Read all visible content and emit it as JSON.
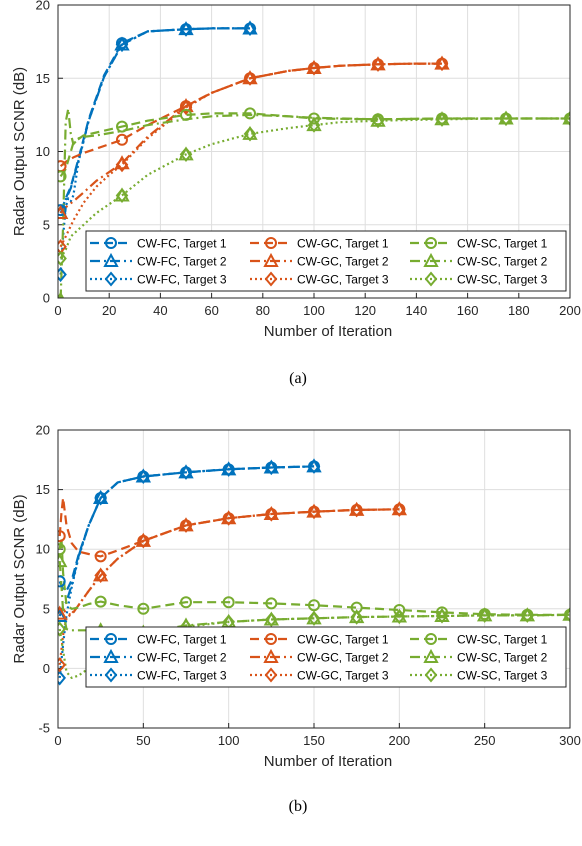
{
  "colors": {
    "fc": "#0072BD",
    "gc": "#D95319",
    "sc": "#77AC30"
  },
  "chart_data": [
    {
      "type": "line",
      "caption": "(a)",
      "xlabel": "Number of Iteration",
      "ylabel": "Radar Output SCNR (dB)",
      "xlim": [
        0,
        200
      ],
      "ylim": [
        0,
        20
      ],
      "xticks": [
        "0",
        "20",
        "40",
        "60",
        "80",
        "100",
        "120",
        "140",
        "160",
        "180",
        "200"
      ],
      "yticks": [
        "0",
        "5",
        "10",
        "15",
        "20"
      ],
      "grid": true,
      "legend_position": "bottom",
      "series": [
        {
          "name": "CW-FC, Target 1",
          "color": "fc",
          "dash": "dash",
          "marker": "circle",
          "x": [
            1,
            2,
            3,
            5,
            8,
            12,
            18,
            25,
            35,
            50,
            60,
            75
          ],
          "y": [
            6.0,
            6.3,
            6.8,
            7.6,
            9.5,
            12.2,
            15.2,
            17.4,
            18.2,
            18.35,
            18.4,
            18.4
          ],
          "mx": [
            1,
            25,
            50,
            75
          ]
        },
        {
          "name": "CW-FC, Target 2",
          "color": "fc",
          "dash": "dashdot",
          "marker": "triangle",
          "x": [
            1,
            2,
            3,
            5,
            8,
            12,
            18,
            25,
            35,
            50,
            60,
            75
          ],
          "y": [
            5.8,
            6.2,
            6.7,
            7.5,
            9.4,
            12.1,
            15.1,
            17.3,
            18.2,
            18.35,
            18.4,
            18.4
          ],
          "mx": [
            1,
            25,
            50,
            75
          ]
        },
        {
          "name": "CW-FC, Target 3",
          "color": "fc",
          "dash": "dot",
          "marker": "diamond",
          "x": [
            1,
            2,
            3,
            4,
            5,
            6,
            8,
            12,
            18,
            25,
            35,
            50,
            60,
            75
          ],
          "y": [
            1.6,
            4.2,
            6.2,
            6.8,
            6.6,
            7.0,
            9.3,
            12.1,
            15.1,
            17.3,
            18.2,
            18.35,
            18.4,
            18.4
          ],
          "mx": [
            1,
            25,
            50,
            75
          ]
        },
        {
          "name": "CW-GC, Target 1",
          "color": "gc",
          "dash": "dash",
          "marker": "circle",
          "x": [
            1,
            3,
            6,
            10,
            15,
            20,
            25,
            35,
            50,
            60,
            75,
            90,
            100,
            110,
            125,
            140,
            150
          ],
          "y": [
            9.0,
            9.3,
            9.6,
            9.9,
            10.2,
            10.5,
            10.8,
            11.8,
            13.1,
            14.0,
            15.0,
            15.5,
            15.7,
            15.85,
            15.95,
            16.0,
            16.0
          ],
          "mx": [
            1,
            25,
            50,
            75,
            100,
            125,
            150
          ]
        },
        {
          "name": "CW-GC, Target 2",
          "color": "gc",
          "dash": "dashdot",
          "marker": "triangle",
          "x": [
            1,
            3,
            6,
            10,
            15,
            20,
            25,
            35,
            50,
            60,
            75,
            90,
            100,
            110,
            125,
            140,
            150
          ],
          "y": [
            5.8,
            6.2,
            6.6,
            7.2,
            8.0,
            8.6,
            9.2,
            11.0,
            13.1,
            14.0,
            15.0,
            15.5,
            15.7,
            15.85,
            15.95,
            16.0,
            16.0
          ],
          "mx": [
            1,
            25,
            50,
            75,
            100,
            125,
            150
          ]
        },
        {
          "name": "CW-GC, Target 3",
          "color": "gc",
          "dash": "dot",
          "marker": "diamond",
          "x": [
            1,
            3,
            6,
            10,
            15,
            20,
            25,
            35,
            50,
            60,
            75,
            90,
            100,
            110,
            125,
            140,
            150
          ],
          "y": [
            3.5,
            4.2,
            5.3,
            6.5,
            7.6,
            8.4,
            9.1,
            10.9,
            13.0,
            14.0,
            15.0,
            15.5,
            15.7,
            15.85,
            15.95,
            16.0,
            16.0
          ],
          "mx": [
            1,
            25,
            50,
            75,
            100,
            125,
            150
          ]
        },
        {
          "name": "CW-SC, Target 1",
          "color": "sc",
          "dash": "dash",
          "marker": "circle",
          "x": [
            1,
            3,
            6,
            10,
            15,
            25,
            35,
            50,
            60,
            75,
            90,
            100,
            125,
            150,
            175,
            200
          ],
          "y": [
            8.3,
            8.8,
            10.6,
            11.1,
            11.3,
            11.7,
            12.1,
            12.5,
            12.6,
            12.6,
            12.4,
            12.25,
            12.2,
            12.25,
            12.25,
            12.25
          ],
          "mx": [
            1,
            25,
            50,
            75,
            100,
            125,
            150,
            175,
            200
          ]
        },
        {
          "name": "CW-SC, Target 2",
          "color": "sc",
          "dash": "dashdot",
          "marker": "triangle",
          "x": [
            1,
            2,
            3,
            4,
            5,
            6,
            8,
            10,
            15,
            25,
            35,
            50,
            60,
            75,
            90,
            100,
            125,
            150,
            175,
            200
          ],
          "y": [
            -0.1,
            5.0,
            12.0,
            12.9,
            11.2,
            10.5,
            10.9,
            11.0,
            11.1,
            11.4,
            11.8,
            12.2,
            12.4,
            12.5,
            12.4,
            12.3,
            12.2,
            12.25,
            12.25,
            12.25
          ],
          "mx": [
            1
          ]
        },
        {
          "name": "CW-SC, Target 3",
          "color": "sc",
          "dash": "dot",
          "marker": "diamond",
          "x": [
            1,
            3,
            5,
            10,
            15,
            25,
            35,
            50,
            60,
            75,
            90,
            100,
            110,
            125,
            150,
            175,
            200
          ],
          "y": [
            2.7,
            3.3,
            4.2,
            5.0,
            5.8,
            7.0,
            8.4,
            9.8,
            10.5,
            11.2,
            11.6,
            11.8,
            12.0,
            12.1,
            12.2,
            12.25,
            12.25
          ],
          "mx": [
            1,
            25,
            50,
            75,
            100,
            125,
            150,
            175,
            200
          ]
        }
      ],
      "extra_markers": [
        {
          "series_color": "sc",
          "marker": "triangle",
          "x": [
            25,
            50,
            75,
            100,
            125,
            150,
            175,
            200
          ],
          "y": [
            7.0,
            9.8,
            11.2,
            11.8,
            12.1,
            12.2,
            12.25,
            12.25
          ]
        }
      ]
    },
    {
      "type": "line",
      "caption": "(b)",
      "xlabel": "Number of Iteration",
      "ylabel": "Radar Output SCNR (dB)",
      "xlim": [
        0,
        300
      ],
      "ylim": [
        -5,
        20
      ],
      "xticks": [
        "0",
        "50",
        "100",
        "150",
        "200",
        "250",
        "300"
      ],
      "yticks": [
        "-5",
        "0",
        "5",
        "10",
        "15",
        "20"
      ],
      "grid": true,
      "legend_position": "bottom",
      "series": [
        {
          "name": "CW-FC, Target 1",
          "color": "fc",
          "dash": "dash",
          "marker": "circle",
          "x": [
            1,
            3,
            5,
            8,
            12,
            18,
            25,
            35,
            50,
            75,
            100,
            125,
            150
          ],
          "y": [
            7.3,
            6.6,
            6.5,
            7.4,
            9.5,
            12.0,
            14.3,
            15.6,
            16.1,
            16.45,
            16.7,
            16.85,
            16.95
          ],
          "mx": [
            1,
            25,
            50,
            75,
            100,
            125,
            150
          ]
        },
        {
          "name": "CW-FC, Target 2",
          "color": "fc",
          "dash": "dashdot",
          "marker": "triangle",
          "x": [
            1,
            3,
            5,
            8,
            12,
            18,
            25,
            35,
            50,
            75,
            100,
            125,
            150
          ],
          "y": [
            4.4,
            5.2,
            5.6,
            7.0,
            9.4,
            12.0,
            14.3,
            15.6,
            16.1,
            16.45,
            16.7,
            16.85,
            16.95
          ],
          "mx": [
            1,
            25,
            50,
            75,
            100,
            125,
            150
          ]
        },
        {
          "name": "CW-FC, Target 3",
          "color": "fc",
          "dash": "dot",
          "marker": "diamond",
          "x": [
            1,
            3,
            5,
            8,
            12,
            18,
            25,
            35,
            50,
            75,
            100,
            125,
            150
          ],
          "y": [
            -0.8,
            2.0,
            4.5,
            6.8,
            9.3,
            12.0,
            14.3,
            15.6,
            16.1,
            16.45,
            16.7,
            16.85,
            16.95
          ],
          "mx": [
            1,
            25,
            50,
            75,
            100,
            125,
            150
          ]
        },
        {
          "name": "CW-GC, Target 1",
          "color": "gc",
          "dash": "dash",
          "marker": "circle",
          "x": [
            1,
            2,
            3,
            5,
            8,
            12,
            18,
            25,
            35,
            50,
            75,
            100,
            125,
            150,
            175,
            200
          ],
          "y": [
            11.1,
            13.0,
            14.3,
            12.0,
            10.5,
            9.8,
            9.6,
            9.4,
            9.9,
            10.7,
            12.0,
            12.6,
            12.95,
            13.15,
            13.3,
            13.35
          ],
          "mx": [
            1,
            25,
            50,
            75,
            100,
            125,
            150,
            175,
            200
          ]
        },
        {
          "name": "CW-GC, Target 2",
          "color": "gc",
          "dash": "dashdot",
          "marker": "triangle",
          "x": [
            1,
            3,
            5,
            8,
            12,
            18,
            25,
            35,
            50,
            75,
            100,
            125,
            150,
            175,
            200
          ],
          "y": [
            4.6,
            5.0,
            4.6,
            4.5,
            5.3,
            6.5,
            7.8,
            9.2,
            10.7,
            12.0,
            12.6,
            12.95,
            13.15,
            13.3,
            13.35
          ],
          "mx": [
            1,
            25,
            50,
            75,
            100,
            125,
            150,
            175,
            200
          ]
        },
        {
          "name": "CW-GC, Target 3",
          "color": "gc",
          "dash": "dot",
          "marker": "diamond",
          "x": [
            1,
            3,
            5,
            8,
            12,
            18,
            25,
            35,
            50,
            75,
            100,
            125,
            150,
            175,
            200
          ],
          "y": [
            0.3,
            2.8,
            4.2,
            4.6,
            5.3,
            6.5,
            7.8,
            9.2,
            10.7,
            12.0,
            12.6,
            12.95,
            13.15,
            13.3,
            13.35
          ],
          "mx": [
            1,
            25,
            50,
            75,
            100,
            125,
            150,
            175,
            200
          ]
        },
        {
          "name": "CW-SC, Target 1",
          "color": "sc",
          "dash": "dash",
          "marker": "circle",
          "x": [
            1,
            2,
            3,
            5,
            8,
            12,
            18,
            25,
            35,
            50,
            75,
            100,
            125,
            150,
            175,
            200,
            225,
            250,
            275,
            300
          ],
          "y": [
            10.0,
            11.0,
            8.0,
            5.3,
            5.0,
            5.1,
            5.4,
            5.6,
            5.3,
            5.0,
            5.55,
            5.55,
            5.45,
            5.3,
            5.1,
            4.9,
            4.7,
            4.55,
            4.5,
            4.5
          ],
          "mx": [
            1,
            25,
            50,
            75,
            100,
            125,
            150,
            175,
            200,
            225,
            250,
            275,
            300
          ]
        },
        {
          "name": "CW-SC, Target 2",
          "color": "sc",
          "dash": "dashdot",
          "marker": "triangle",
          "x": [
            1,
            2,
            3,
            5,
            8,
            12,
            18,
            25,
            35,
            50,
            75,
            100,
            125,
            150,
            175,
            200,
            225,
            250,
            275,
            300
          ],
          "y": [
            9.0,
            7.0,
            4.8,
            3.3,
            3.2,
            3.2,
            3.2,
            3.2,
            3.1,
            3.0,
            3.6,
            3.9,
            4.1,
            4.2,
            4.3,
            4.35,
            4.4,
            4.45,
            4.45,
            4.5
          ],
          "mx": [
            1,
            25,
            50,
            75,
            100,
            125,
            150,
            175,
            200,
            225,
            250,
            275,
            300
          ]
        },
        {
          "name": "CW-SC, Target 3",
          "color": "sc",
          "dash": "dot",
          "marker": "diamond",
          "x": [
            1,
            3,
            5,
            8,
            12,
            18,
            25,
            35,
            50,
            75,
            100,
            125,
            150,
            175,
            200,
            225,
            250,
            275,
            300
          ],
          "y": [
            3.3,
            1.5,
            -0.3,
            -0.8,
            -0.6,
            0.0,
            0.8,
            1.8,
            2.6,
            3.5,
            3.9,
            4.1,
            4.2,
            4.3,
            4.35,
            4.4,
            4.45,
            4.45,
            4.5
          ],
          "mx": [
            1,
            25,
            50,
            75,
            100,
            125,
            150,
            175,
            200,
            225,
            250,
            275,
            300
          ]
        }
      ]
    }
  ]
}
